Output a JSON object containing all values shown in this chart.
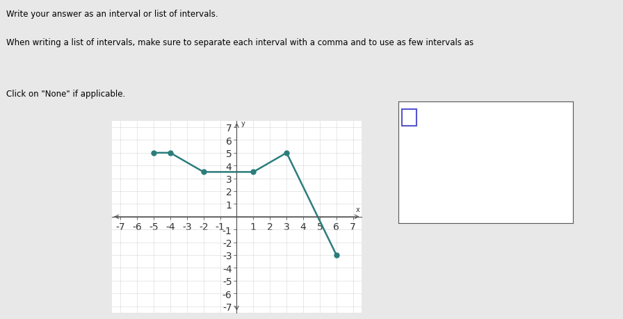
{
  "x_points": [
    -5,
    -4,
    -2,
    1,
    3,
    6
  ],
  "y_points": [
    5,
    5,
    3.5,
    3.5,
    5,
    -3
  ],
  "line_color": "#2a7d7b",
  "marker_color": "#2a7d7b",
  "marker_size": 5,
  "line_width": 1.8,
  "xlim": [
    -7.5,
    7.5
  ],
  "ylim": [
    -7.5,
    7.5
  ],
  "xticks": [
    -7,
    -6,
    -5,
    -4,
    -3,
    -2,
    -1,
    1,
    2,
    3,
    4,
    5,
    6,
    7
  ],
  "yticks": [
    -7,
    -6,
    -5,
    -4,
    -3,
    -2,
    -1,
    1,
    2,
    3,
    4,
    5,
    6,
    7
  ],
  "xlabel": "x",
  "ylabel": "y",
  "page_bg": "#e8e8e8",
  "plot_bg": "#ffffff",
  "grid_color": "#cccccc",
  "text_lines": [
    "Write your answer as an interval or list of intervals.",
    "When writing a list of intervals, make sure to separate each interval with a comma and to use as few intervals as",
    "",
    "Click on \"None\" if applicable."
  ],
  "figsize": [
    8.96,
    4.6
  ],
  "dpi": 100
}
